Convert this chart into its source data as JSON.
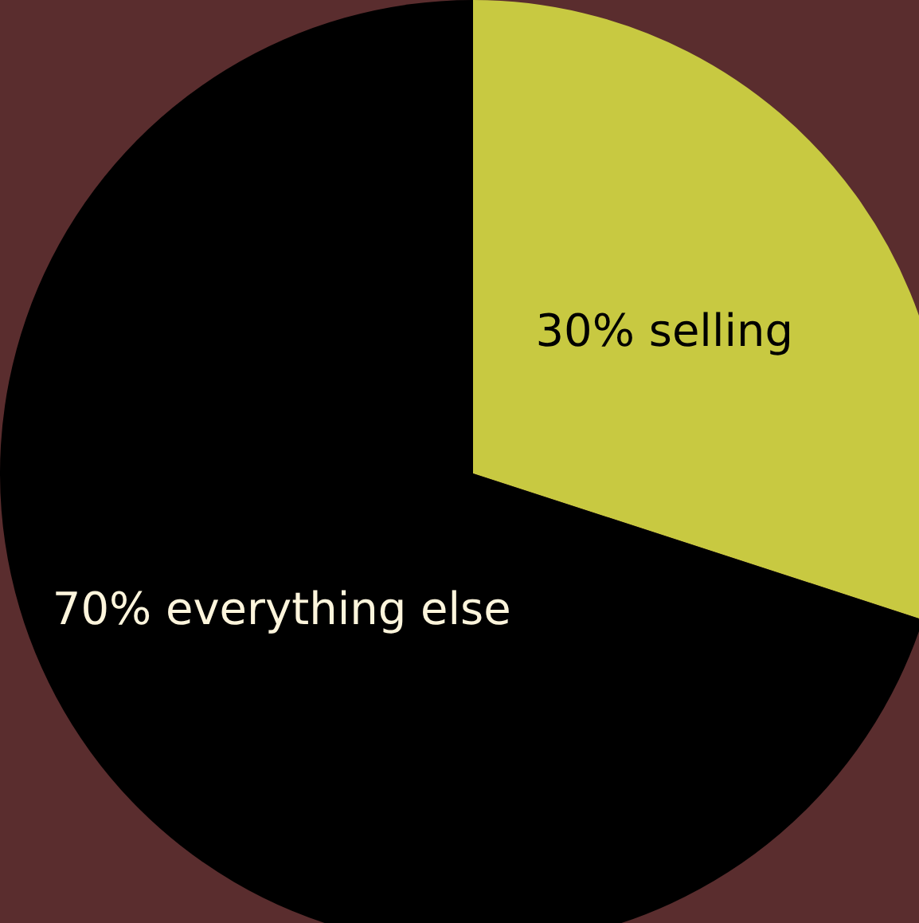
{
  "chart_data": {
    "type": "pie",
    "categories": [
      "30% selling",
      "70% everything else"
    ],
    "values": [
      30,
      70
    ],
    "colors": [
      "#c8c941",
      "#000000"
    ],
    "legend": false
  }
}
